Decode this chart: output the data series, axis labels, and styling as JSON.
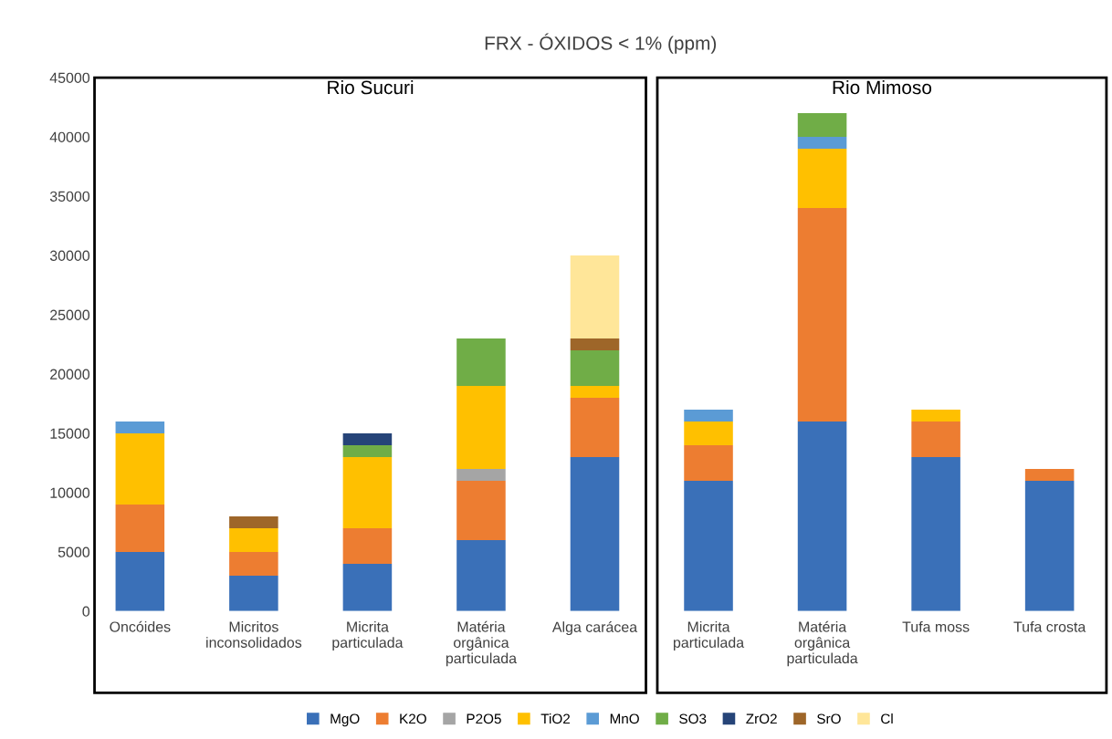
{
  "chart_data": {
    "type": "bar",
    "stacked": true,
    "title": "FRX - ÓXIDOS < 1% (ppm)",
    "categories": [
      "Oncóides",
      "Micritos\ninconsolidados",
      "Micrita\nparticulada",
      "Matéria\norgânica\nparticulada",
      "Alga carácea",
      "Micrita\nparticulada",
      "Matéria\norgânica\nparticulada",
      "Tufa moss",
      "Tufa crosta"
    ],
    "series": [
      {
        "name": "MgO",
        "color": "#3a70b8",
        "values": [
          5000,
          3000,
          4000,
          6000,
          13000,
          11000,
          16000,
          13000,
          11000
        ]
      },
      {
        "name": "K2O",
        "color": "#ed7d31",
        "values": [
          4000,
          2000,
          3000,
          5000,
          5000,
          3000,
          18000,
          3000,
          1000
        ]
      },
      {
        "name": "P2O5",
        "color": "#a5a5a5",
        "values": [
          0,
          0,
          0,
          1000,
          0,
          0,
          0,
          0,
          0
        ]
      },
      {
        "name": "TiO2",
        "color": "#ffc000",
        "values": [
          6000,
          2000,
          6000,
          7000,
          1000,
          2000,
          5000,
          1000,
          0
        ]
      },
      {
        "name": "MnO",
        "color": "#5b9bd5",
        "values": [
          1000,
          0,
          0,
          0,
          0,
          1000,
          1000,
          0,
          0
        ]
      },
      {
        "name": "SO3",
        "color": "#70ad47",
        "values": [
          0,
          0,
          1000,
          4000,
          3000,
          0,
          2000,
          0,
          0
        ]
      },
      {
        "name": "ZrO2",
        "color": "#264478",
        "values": [
          0,
          0,
          1000,
          0,
          0,
          0,
          0,
          0,
          0
        ]
      },
      {
        "name": "SrO",
        "color": "#9e6629",
        "values": [
          0,
          1000,
          0,
          0,
          1000,
          0,
          0,
          0,
          0
        ]
      },
      {
        "name": "Cl",
        "color": "#ffe699",
        "values": [
          0,
          0,
          0,
          0,
          7000,
          0,
          0,
          0,
          0
        ]
      }
    ],
    "ylim": [
      0,
      45000
    ],
    "yticks": [
      0,
      5000,
      10000,
      15000,
      20000,
      25000,
      30000,
      35000,
      40000,
      45000
    ],
    "grid": false,
    "legend": "bottom",
    "annotations": [
      "Rio Sucuri",
      "Rio Mimoso"
    ]
  }
}
